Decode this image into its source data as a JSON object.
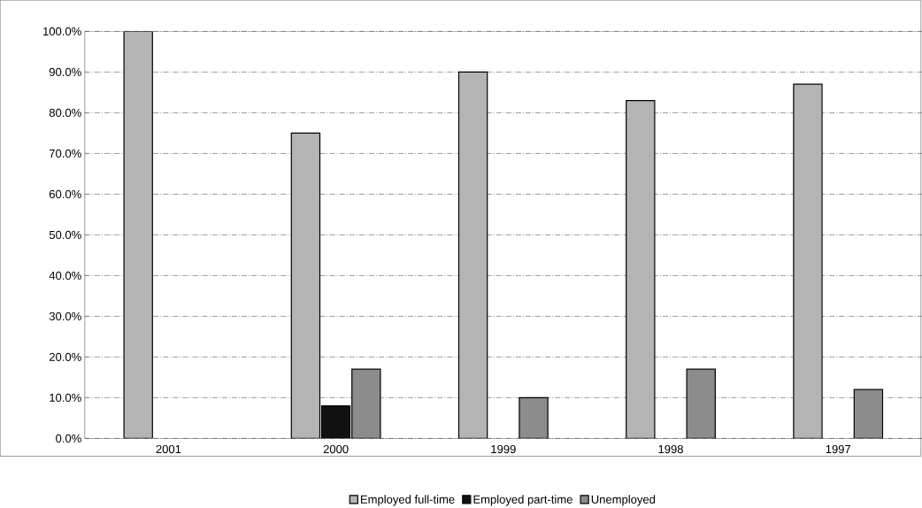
{
  "chart_data": {
    "type": "bar",
    "categories": [
      "2001",
      "2000",
      "1999",
      "1998",
      "1997"
    ],
    "series": [
      {
        "name": "Employed full-time",
        "color": "#b4b4b4",
        "values": [
          100,
          75,
          90,
          83,
          87
        ]
      },
      {
        "name": "Employed part-time",
        "color": "#111111",
        "values": [
          null,
          8,
          null,
          null,
          null
        ]
      },
      {
        "name": "Unemployed",
        "color": "#8c8c8c",
        "values": [
          null,
          17,
          10,
          17,
          12
        ]
      }
    ],
    "ylim": [
      0,
      100
    ],
    "yticks": [
      {
        "value": 0,
        "label": "0.0%"
      },
      {
        "value": 10,
        "label": "10.0%"
      },
      {
        "value": 20,
        "label": "20.0%"
      },
      {
        "value": 30,
        "label": "30.0%"
      },
      {
        "value": 40,
        "label": "40.0%"
      },
      {
        "value": 50,
        "label": "50.0%"
      },
      {
        "value": 60,
        "label": "60.0%"
      },
      {
        "value": 70,
        "label": "70.0%"
      },
      {
        "value": 80,
        "label": "80.0%"
      },
      {
        "value": 90,
        "label": "90.0%"
      },
      {
        "value": 100,
        "label": "100.0%"
      }
    ],
    "grid": "y",
    "legend": "bottom"
  }
}
